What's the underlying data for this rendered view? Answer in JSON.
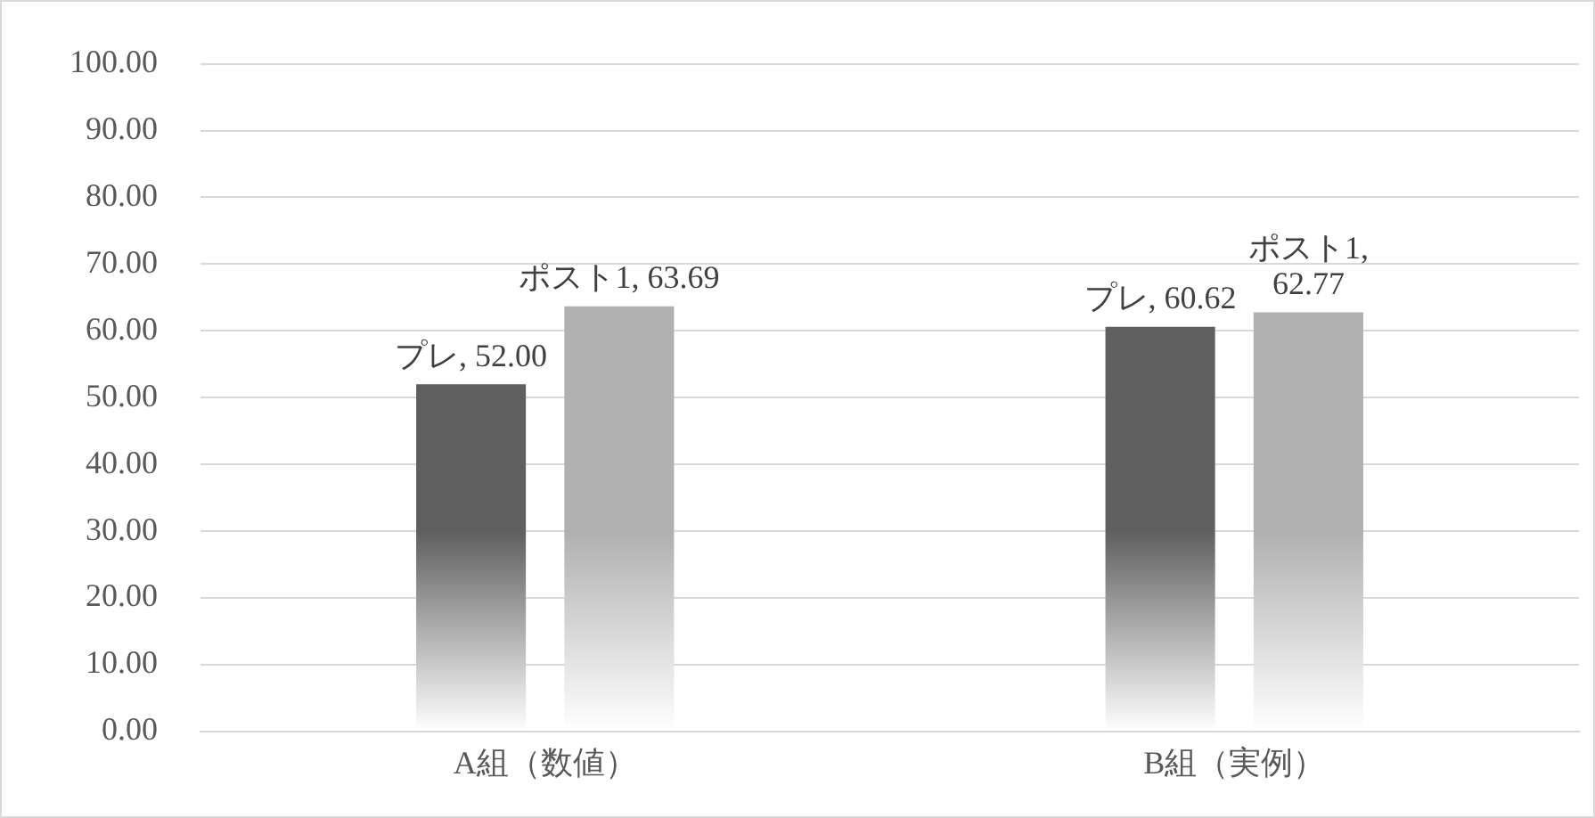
{
  "chart_data": {
    "type": "bar",
    "categories": [
      "A組（数値）",
      "B組（実例）"
    ],
    "series": [
      {
        "color": "#5f5f5f",
        "values": [
          52.0,
          60.62
        ],
        "value_labels": [
          "プレ, 52.00",
          "プレ, 60.62"
        ]
      },
      {
        "color": "#b0b0b0",
        "values": [
          63.69,
          62.77
        ],
        "value_labels": [
          "ポスト1, 63.69",
          "ポスト1, 62.77"
        ]
      }
    ],
    "ylim": [
      0,
      100
    ],
    "yticks": [
      {
        "value": 0,
        "label": "0.00"
      },
      {
        "value": 10,
        "label": "10.00"
      },
      {
        "value": 20,
        "label": "20.00"
      },
      {
        "value": 30,
        "label": "30.00"
      },
      {
        "value": 40,
        "label": "40.00"
      },
      {
        "value": 50,
        "label": "50.00"
      },
      {
        "value": 60,
        "label": "60.00"
      },
      {
        "value": 70,
        "label": "70.00"
      },
      {
        "value": 80,
        "label": "80.00"
      },
      {
        "value": 90,
        "label": "90.00"
      },
      {
        "value": 100,
        "label": "100.00"
      }
    ],
    "grid": "y",
    "legend": false
  }
}
